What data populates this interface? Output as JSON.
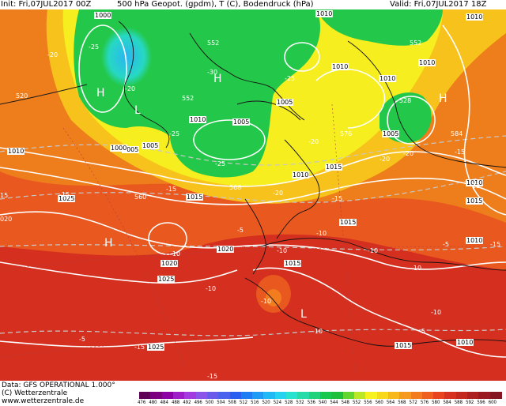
{
  "header": {
    "init": "Init: Fri,07JUL2017 00Z",
    "title": "500 hPa Geopot. (gpdm), T (C), Bodendruck (hPa)",
    "valid": "Valid: Fri,07JUL2017 18Z"
  },
  "footer": {
    "line1": "Data: GFS OPERATIONAL 1.000°",
    "line2": "(C) Wetterzentrale",
    "line3": "www.wetterzentrale.de"
  },
  "legend": {
    "ticks": [
      "476",
      "480",
      "484",
      "488",
      "492",
      "496",
      "500",
      "504",
      "508",
      "512",
      "516",
      "520",
      "524",
      "528",
      "532",
      "536",
      "540",
      "544",
      "548",
      "552",
      "556",
      "560",
      "564",
      "568",
      "572",
      "576",
      "580",
      "584",
      "588",
      "592",
      "596",
      "600"
    ],
    "colors": [
      "#5e0053",
      "#7a0080",
      "#8c00a6",
      "#9d1ec8",
      "#a23be0",
      "#8a55e8",
      "#6a5bea",
      "#4a62ee",
      "#2a5ff0",
      "#1e7df2",
      "#1f9af5",
      "#21b8f6",
      "#25d3f0",
      "#27e2cf",
      "#25dba8",
      "#20d27a",
      "#17c84c",
      "#1ebf3a",
      "#62d62e",
      "#b8e826",
      "#f6f21e",
      "#f8d81b",
      "#f7b81c",
      "#f59a1d",
      "#f27c1e",
      "#ee5f20",
      "#e84420",
      "#d7321f",
      "#c22a20",
      "#ad2121",
      "#991a20",
      "#851520"
    ]
  },
  "map": {
    "markers": [
      {
        "text": "H",
        "kind": "high"
      },
      {
        "text": "H",
        "kind": "high"
      },
      {
        "text": "H",
        "kind": "high"
      },
      {
        "text": "H",
        "kind": "high"
      },
      {
        "text": "L",
        "kind": "low"
      },
      {
        "text": "L",
        "kind": "low"
      }
    ],
    "pressure_labels": [
      "1000",
      "1010",
      "1010",
      "1010",
      "1005",
      "1005",
      "1005",
      "1010",
      "1010",
      "1015",
      "1015",
      "1015",
      "1010",
      "1005",
      "1010",
      "1000",
      "1025",
      "1020",
      "1020",
      "1025",
      "1015",
      "1025",
      "1015",
      "1010",
      "1010",
      "1015",
      "1005",
      "1010",
      "1010"
    ],
    "geopot_labels": [
      "552",
      "552",
      "552",
      "568",
      "584",
      "528",
      "520",
      "560",
      "576"
    ],
    "temp_labels": [
      "-25",
      "-20",
      "-30",
      "-25",
      "-20",
      "-25",
      "-25",
      "-20",
      "-20",
      "-15",
      "-15",
      "-15",
      "-20",
      "-20",
      "-15",
      "-15",
      "-15",
      "-10",
      "-10",
      "-10",
      "-10",
      "-10",
      "-10",
      "-15",
      "-15",
      "-10",
      "-5",
      "-10",
      "-5",
      "-5",
      "-10",
      "-5",
      "15",
      "020"
    ],
    "colors": {
      "orange": "#ee7d1c",
      "orange_dark": "#e8581f",
      "red": "#d42f1f",
      "red_dark": "#c22a20",
      "yellow": "#f6ee1e",
      "yellow_orange": "#f7c21c",
      "green": "#23c84a",
      "green_light": "#5cd62e",
      "cyan": "#27d8c4",
      "blue": "#29b7f2",
      "isobar": "#ffffff",
      "coast": "#000000",
      "isotherm": "#c0c0c0"
    }
  }
}
